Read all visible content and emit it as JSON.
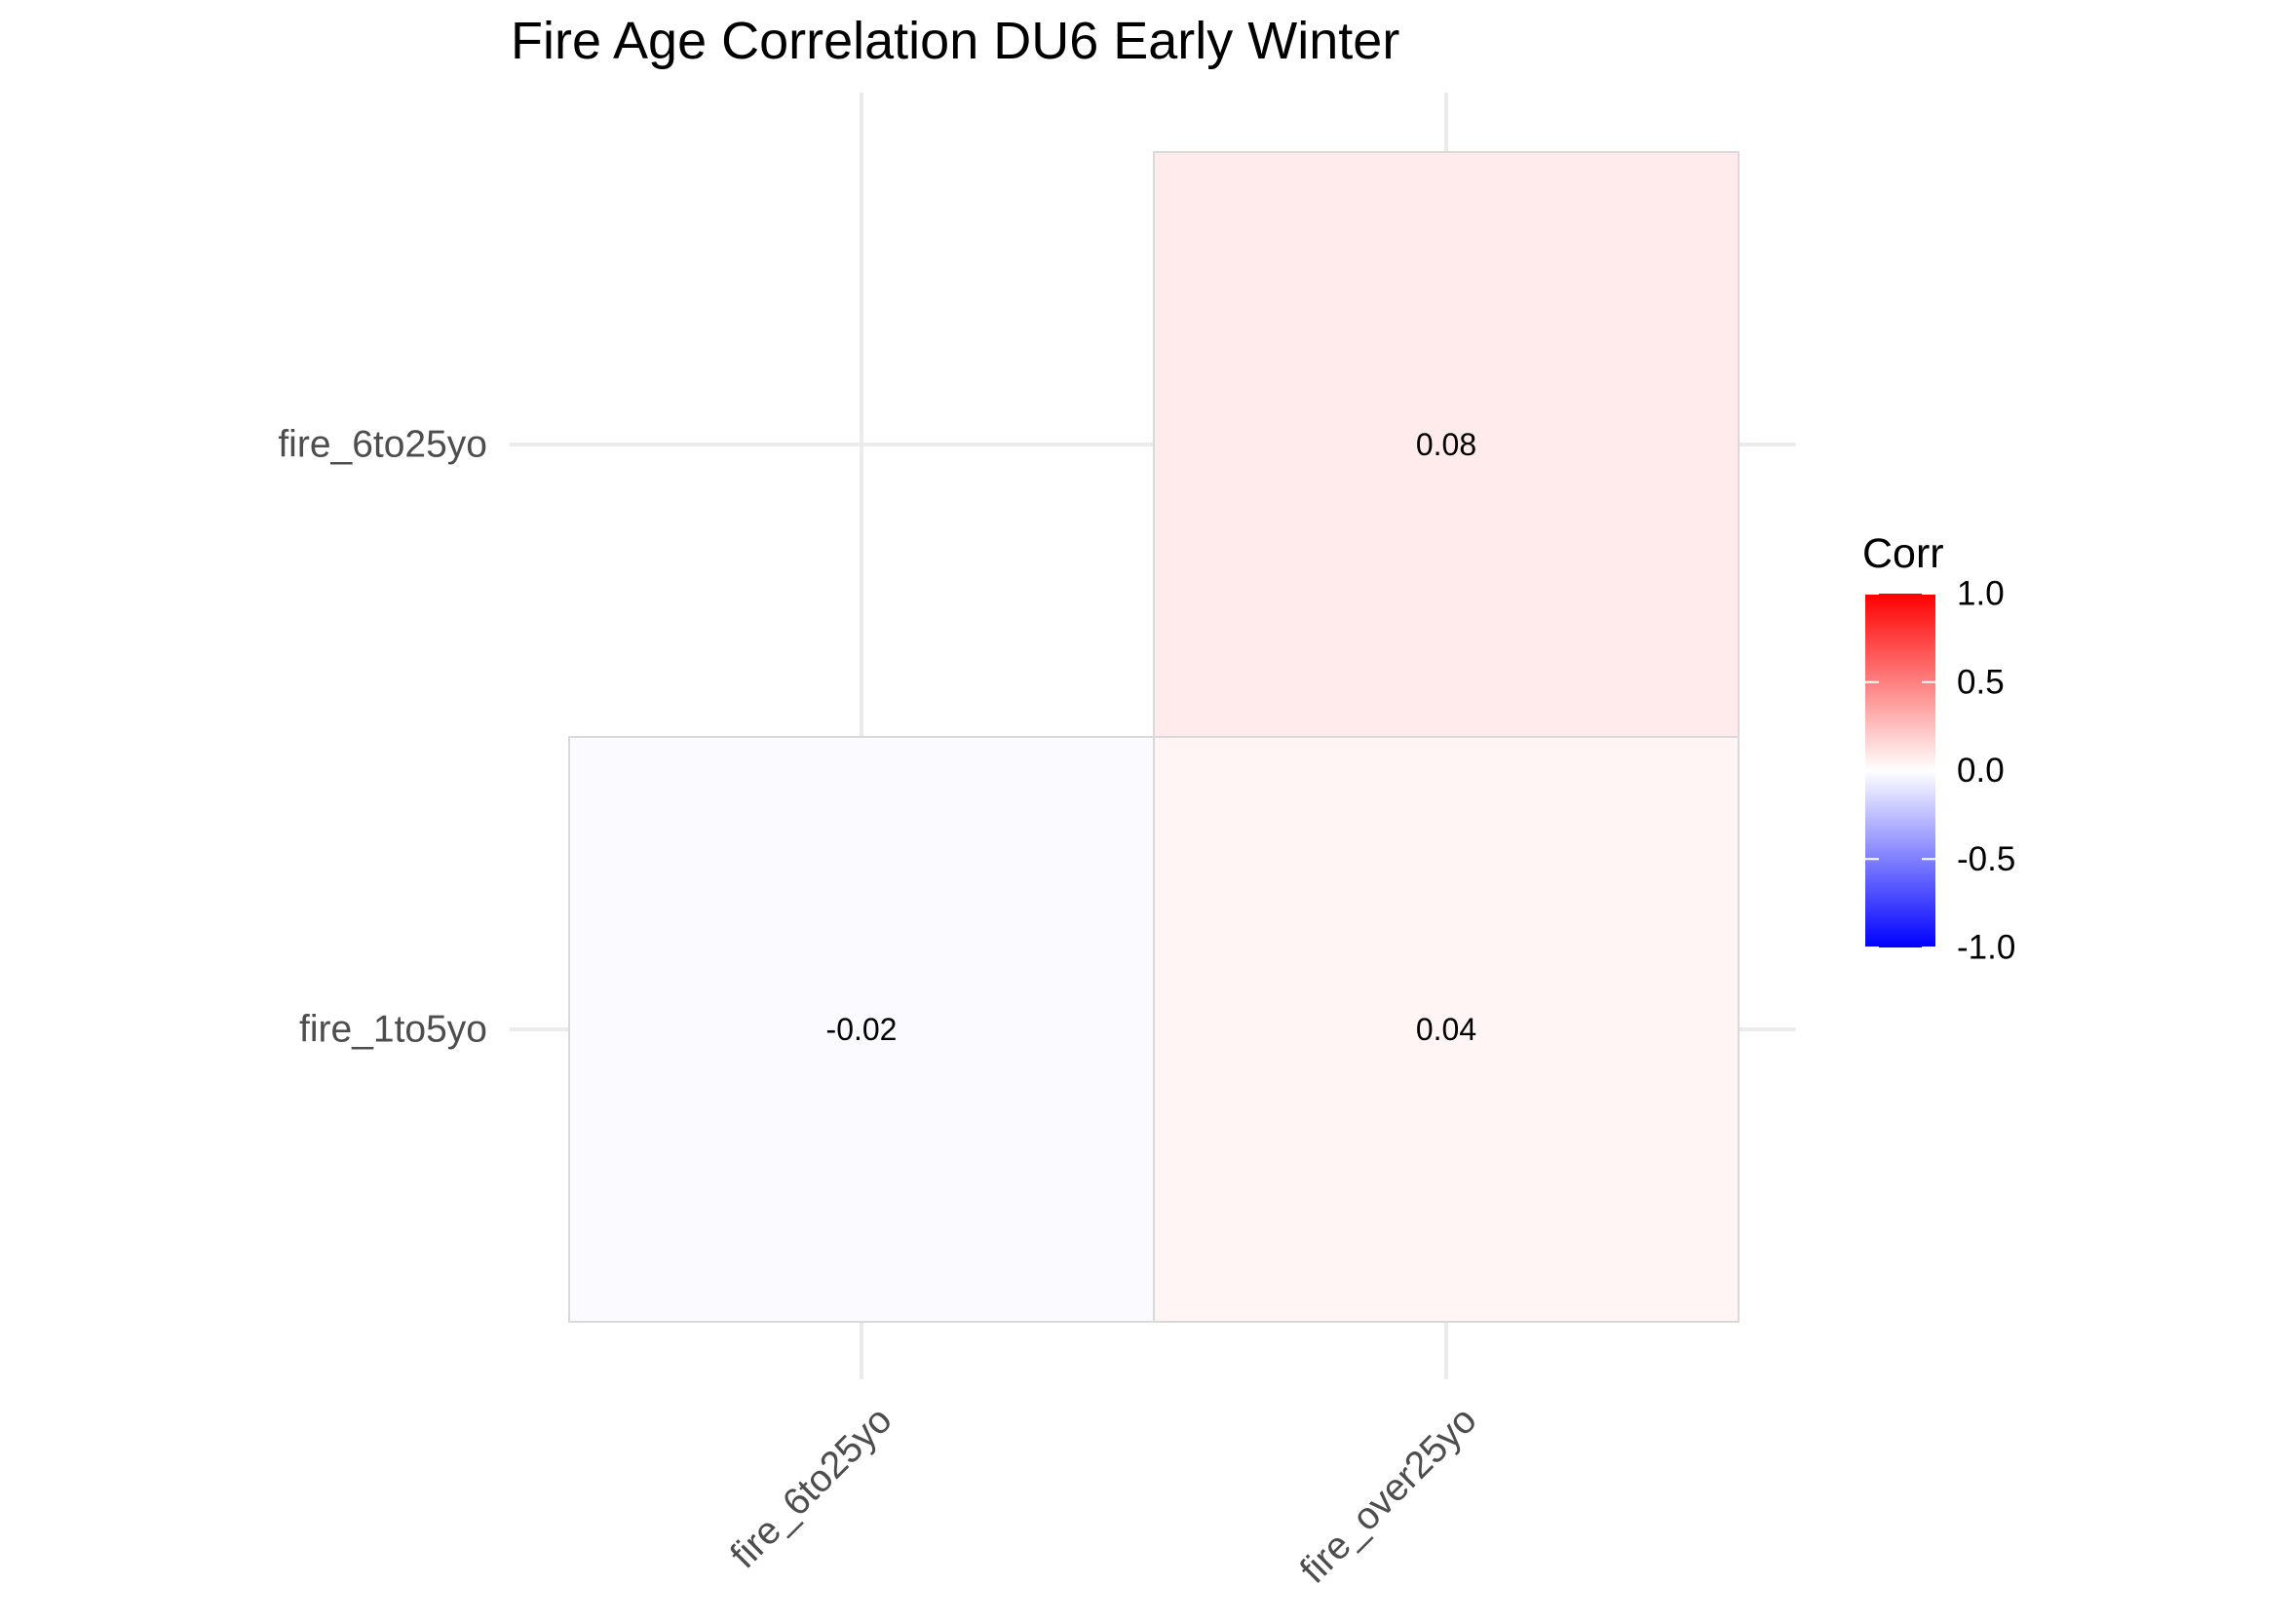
{
  "chart_data": {
    "type": "heatmap",
    "title": "Fire Age Correlation DU6 Early Winter",
    "x_categories": [
      "fire_6to25yo",
      "fire_over25yo"
    ],
    "y_categories": [
      "fire_1to5yo",
      "fire_6to25yo"
    ],
    "cells": [
      {
        "x": "fire_6to25yo",
        "y": "fire_1to5yo",
        "value": -0.02,
        "label": "-0.02"
      },
      {
        "x": "fire_over25yo",
        "y": "fire_1to5yo",
        "value": 0.04,
        "label": "0.04"
      },
      {
        "x": "fire_over25yo",
        "y": "fire_6to25yo",
        "value": 0.08,
        "label": "0.08"
      }
    ],
    "legend": {
      "title": "Corr",
      "range": [
        -1,
        1
      ],
      "ticks": [
        1.0,
        0.5,
        0.0,
        -0.5,
        -1.0
      ],
      "tick_labels": [
        "1.0",
        "0.5",
        "0.0",
        "-0.5",
        "-1.0"
      ],
      "low_color": "#0000ff",
      "mid_color": "#ffffff",
      "high_color": "#ff0000"
    },
    "grid": true
  }
}
